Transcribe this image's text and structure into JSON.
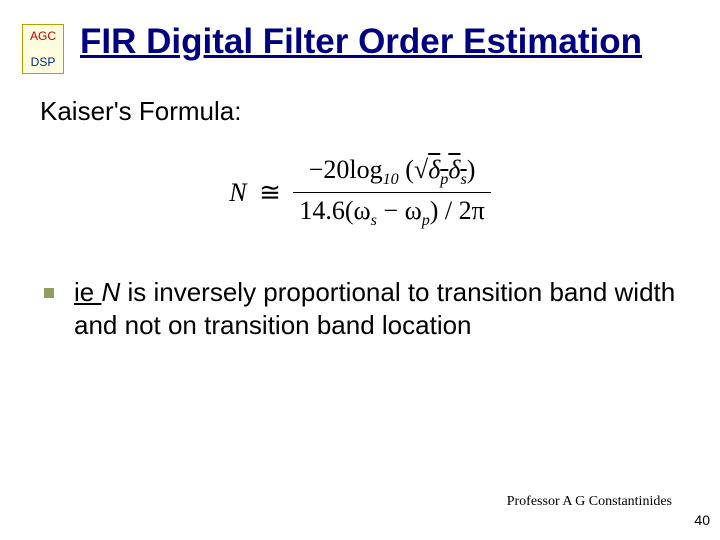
{
  "logo": {
    "top": "AGC",
    "bottom": "DSP"
  },
  "title": "FIR Digital Filter Order Estimation",
  "subhead": "Kaiser's Formula:",
  "formula": {
    "lhs": "N",
    "num_prefix": "−20log",
    "num_sub": "10",
    "num_rad_inner": "δ",
    "num_d1_sub": "p",
    "num_d2_sub": "s",
    "den_coeff": "14.6(ω",
    "den_s_sub": "s",
    "den_mid": " − ω",
    "den_p_sub": "p",
    "den_tail": ") / 2π"
  },
  "bullet": {
    "ie": "ie ",
    "nvar": "N",
    "rest": " is inversely proportional to transition band width and not on transition band location"
  },
  "footer": {
    "author": "Professor A G Constantinides",
    "page": "40"
  }
}
